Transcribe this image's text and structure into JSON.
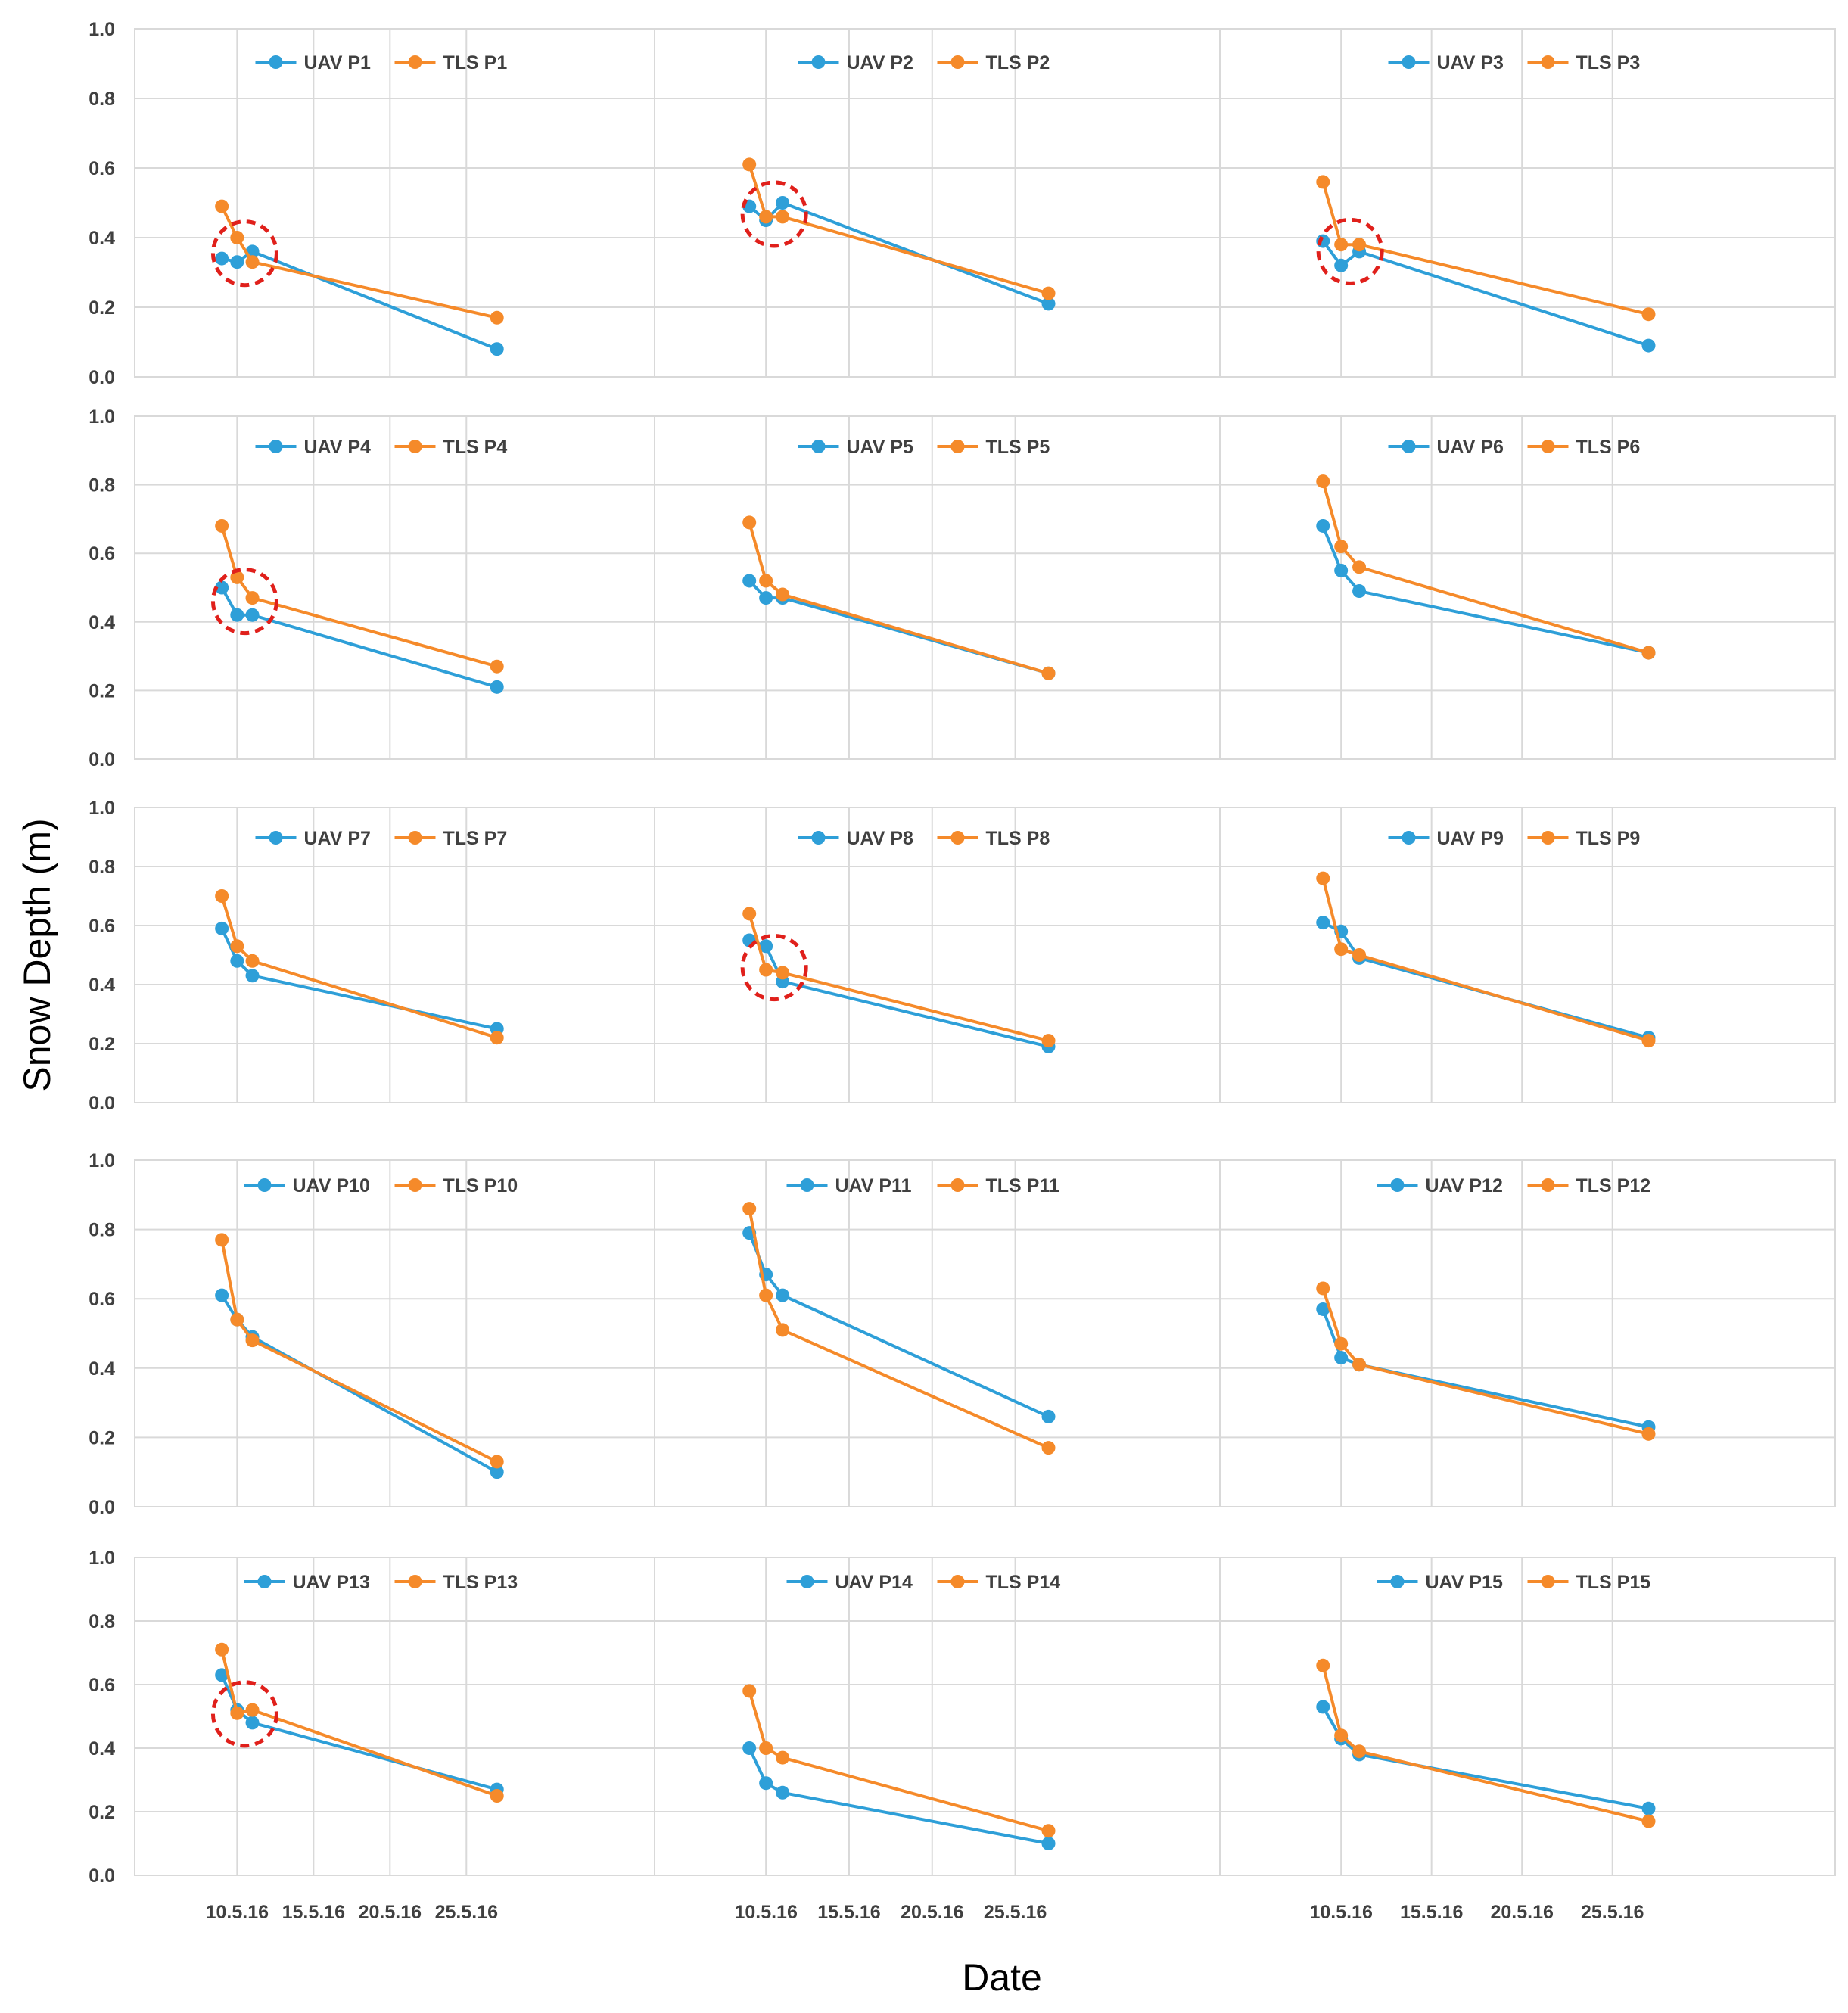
{
  "figure": {
    "ylabel": "Snow Depth (m)",
    "xlabel": "Date",
    "y_ticks": [
      "0.0",
      "0.2",
      "0.4",
      "0.6",
      "0.8",
      "1.0"
    ],
    "x_ticks": [
      "10.5.16",
      "15.5.16",
      "20.5.16",
      "25.5.16"
    ]
  },
  "colors": {
    "uav": "#2E9FD8",
    "tls": "#F58A2A",
    "highlight": "#E0201B",
    "grid": "#D9D9D9",
    "text": "#404040"
  },
  "chart_data": [
    {
      "type": "line",
      "panel": "P1",
      "x": [
        "9.5.16",
        "10.5.16",
        "11.5.16",
        "27.5.16"
      ],
      "ylim": [
        0,
        1.0
      ],
      "grid": true,
      "legend": "top",
      "series": [
        {
          "name": "UAV P1",
          "values": [
            0.34,
            0.33,
            0.36,
            0.08
          ]
        },
        {
          "name": "TLS P1",
          "values": [
            0.49,
            0.4,
            0.33,
            0.17
          ]
        }
      ],
      "highlight": true
    },
    {
      "type": "line",
      "panel": "P2",
      "x": [
        "9.5.16",
        "10.5.16",
        "11.5.16",
        "27.5.16"
      ],
      "ylim": [
        0,
        1.0
      ],
      "grid": true,
      "legend": "top",
      "series": [
        {
          "name": "UAV P2",
          "values": [
            0.49,
            0.45,
            0.5,
            0.21
          ]
        },
        {
          "name": "TLS P2",
          "values": [
            0.61,
            0.46,
            0.46,
            0.24
          ]
        }
      ],
      "highlight": true
    },
    {
      "type": "line",
      "panel": "P3",
      "x": [
        "9.5.16",
        "10.5.16",
        "11.5.16",
        "27.5.16"
      ],
      "ylim": [
        0,
        1.0
      ],
      "grid": true,
      "legend": "top",
      "series": [
        {
          "name": "UAV P3",
          "values": [
            0.39,
            0.32,
            0.36,
            0.09
          ]
        },
        {
          "name": "TLS P3",
          "values": [
            0.56,
            0.38,
            0.38,
            0.18
          ]
        }
      ],
      "highlight": true
    },
    {
      "type": "line",
      "panel": "P4",
      "x": [
        "9.5.16",
        "10.5.16",
        "11.5.16",
        "27.5.16"
      ],
      "ylim": [
        0,
        1.0
      ],
      "grid": true,
      "legend": "top",
      "series": [
        {
          "name": "UAV P4",
          "values": [
            0.5,
            0.42,
            0.42,
            0.21
          ]
        },
        {
          "name": "TLS P4",
          "values": [
            0.68,
            0.53,
            0.47,
            0.27
          ]
        }
      ],
      "highlight": true
    },
    {
      "type": "line",
      "panel": "P5",
      "x": [
        "9.5.16",
        "10.5.16",
        "11.5.16",
        "27.5.16"
      ],
      "ylim": [
        0,
        1.0
      ],
      "grid": true,
      "legend": "top",
      "series": [
        {
          "name": "UAV P5",
          "values": [
            0.52,
            0.47,
            0.47,
            0.25
          ]
        },
        {
          "name": "TLS P5",
          "values": [
            0.69,
            0.52,
            0.48,
            0.25
          ]
        }
      ],
      "highlight": false
    },
    {
      "type": "line",
      "panel": "P6",
      "x": [
        "9.5.16",
        "10.5.16",
        "11.5.16",
        "27.5.16"
      ],
      "ylim": [
        0,
        1.0
      ],
      "grid": true,
      "legend": "top",
      "series": [
        {
          "name": "UAV P6",
          "values": [
            0.68,
            0.55,
            0.49,
            0.31
          ]
        },
        {
          "name": "TLS P6",
          "values": [
            0.81,
            0.62,
            0.56,
            0.31
          ]
        }
      ],
      "highlight": false
    },
    {
      "type": "line",
      "panel": "P7",
      "x": [
        "9.5.16",
        "10.5.16",
        "11.5.16",
        "27.5.16"
      ],
      "ylim": [
        0,
        1.0
      ],
      "grid": true,
      "legend": "top",
      "series": [
        {
          "name": "UAV P7",
          "values": [
            0.59,
            0.48,
            0.43,
            0.25
          ]
        },
        {
          "name": "TLS P7",
          "values": [
            0.7,
            0.53,
            0.48,
            0.22
          ]
        }
      ],
      "highlight": false
    },
    {
      "type": "line",
      "panel": "P8",
      "x": [
        "9.5.16",
        "10.5.16",
        "11.5.16",
        "27.5.16"
      ],
      "ylim": [
        0,
        1.0
      ],
      "grid": true,
      "legend": "top",
      "series": [
        {
          "name": "UAV P8",
          "values": [
            0.55,
            0.53,
            0.41,
            0.19
          ]
        },
        {
          "name": "TLS P8",
          "values": [
            0.64,
            0.45,
            0.44,
            0.21
          ]
        }
      ],
      "highlight": true
    },
    {
      "type": "line",
      "panel": "P9",
      "x": [
        "9.5.16",
        "10.5.16",
        "11.5.16",
        "27.5.16"
      ],
      "ylim": [
        0,
        1.0
      ],
      "grid": true,
      "legend": "top",
      "series": [
        {
          "name": "UAV P9",
          "values": [
            0.61,
            0.58,
            0.49,
            0.22
          ]
        },
        {
          "name": "TLS P9",
          "values": [
            0.76,
            0.52,
            0.5,
            0.21
          ]
        }
      ],
      "highlight": false
    },
    {
      "type": "line",
      "panel": "P10",
      "x": [
        "9.5.16",
        "10.5.16",
        "11.5.16",
        "27.5.16"
      ],
      "ylim": [
        0,
        1.0
      ],
      "grid": true,
      "legend": "top",
      "series": [
        {
          "name": "UAV P10",
          "values": [
            0.61,
            0.54,
            0.49,
            0.1
          ]
        },
        {
          "name": "TLS P10",
          "values": [
            0.77,
            0.54,
            0.48,
            0.13
          ]
        }
      ],
      "highlight": false
    },
    {
      "type": "line",
      "panel": "P11",
      "x": [
        "9.5.16",
        "10.5.16",
        "11.5.16",
        "27.5.16"
      ],
      "ylim": [
        0,
        1.0
      ],
      "grid": true,
      "legend": "top",
      "series": [
        {
          "name": "UAV P11",
          "values": [
            0.79,
            0.67,
            0.61,
            0.26
          ]
        },
        {
          "name": "TLS P11",
          "values": [
            0.86,
            0.61,
            0.51,
            0.17
          ]
        }
      ],
      "highlight": false
    },
    {
      "type": "line",
      "panel": "P12",
      "x": [
        "9.5.16",
        "10.5.16",
        "11.5.16",
        "27.5.16"
      ],
      "ylim": [
        0,
        1.0
      ],
      "grid": true,
      "legend": "top",
      "series": [
        {
          "name": "UAV P12",
          "values": [
            0.57,
            0.43,
            0.41,
            0.23
          ]
        },
        {
          "name": "TLS P12",
          "values": [
            0.63,
            0.47,
            0.41,
            0.21
          ]
        }
      ],
      "highlight": false
    },
    {
      "type": "line",
      "panel": "P13",
      "x": [
        "9.5.16",
        "10.5.16",
        "11.5.16",
        "27.5.16"
      ],
      "ylim": [
        0,
        1.0
      ],
      "grid": true,
      "legend": "top",
      "series": [
        {
          "name": "UAV P13",
          "values": [
            0.63,
            0.52,
            0.48,
            0.27
          ]
        },
        {
          "name": "TLS P13",
          "values": [
            0.71,
            0.51,
            0.52,
            0.25
          ]
        }
      ],
      "highlight": true
    },
    {
      "type": "line",
      "panel": "P14",
      "x": [
        "9.5.16",
        "10.5.16",
        "11.5.16",
        "27.5.16"
      ],
      "ylim": [
        0,
        1.0
      ],
      "grid": true,
      "legend": "top",
      "series": [
        {
          "name": "UAV P14",
          "values": [
            0.4,
            0.29,
            0.26,
            0.1
          ]
        },
        {
          "name": "TLS P14",
          "values": [
            0.58,
            0.4,
            0.37,
            0.14
          ]
        }
      ],
      "highlight": false
    },
    {
      "type": "line",
      "panel": "P15",
      "x": [
        "9.5.16",
        "10.5.16",
        "11.5.16",
        "27.5.16"
      ],
      "ylim": [
        0,
        1.0
      ],
      "grid": true,
      "legend": "top",
      "series": [
        {
          "name": "UAV P15",
          "values": [
            0.53,
            0.43,
            0.38,
            0.21
          ]
        },
        {
          "name": "TLS P15",
          "values": [
            0.66,
            0.44,
            0.39,
            0.17
          ]
        }
      ],
      "highlight": false
    }
  ]
}
